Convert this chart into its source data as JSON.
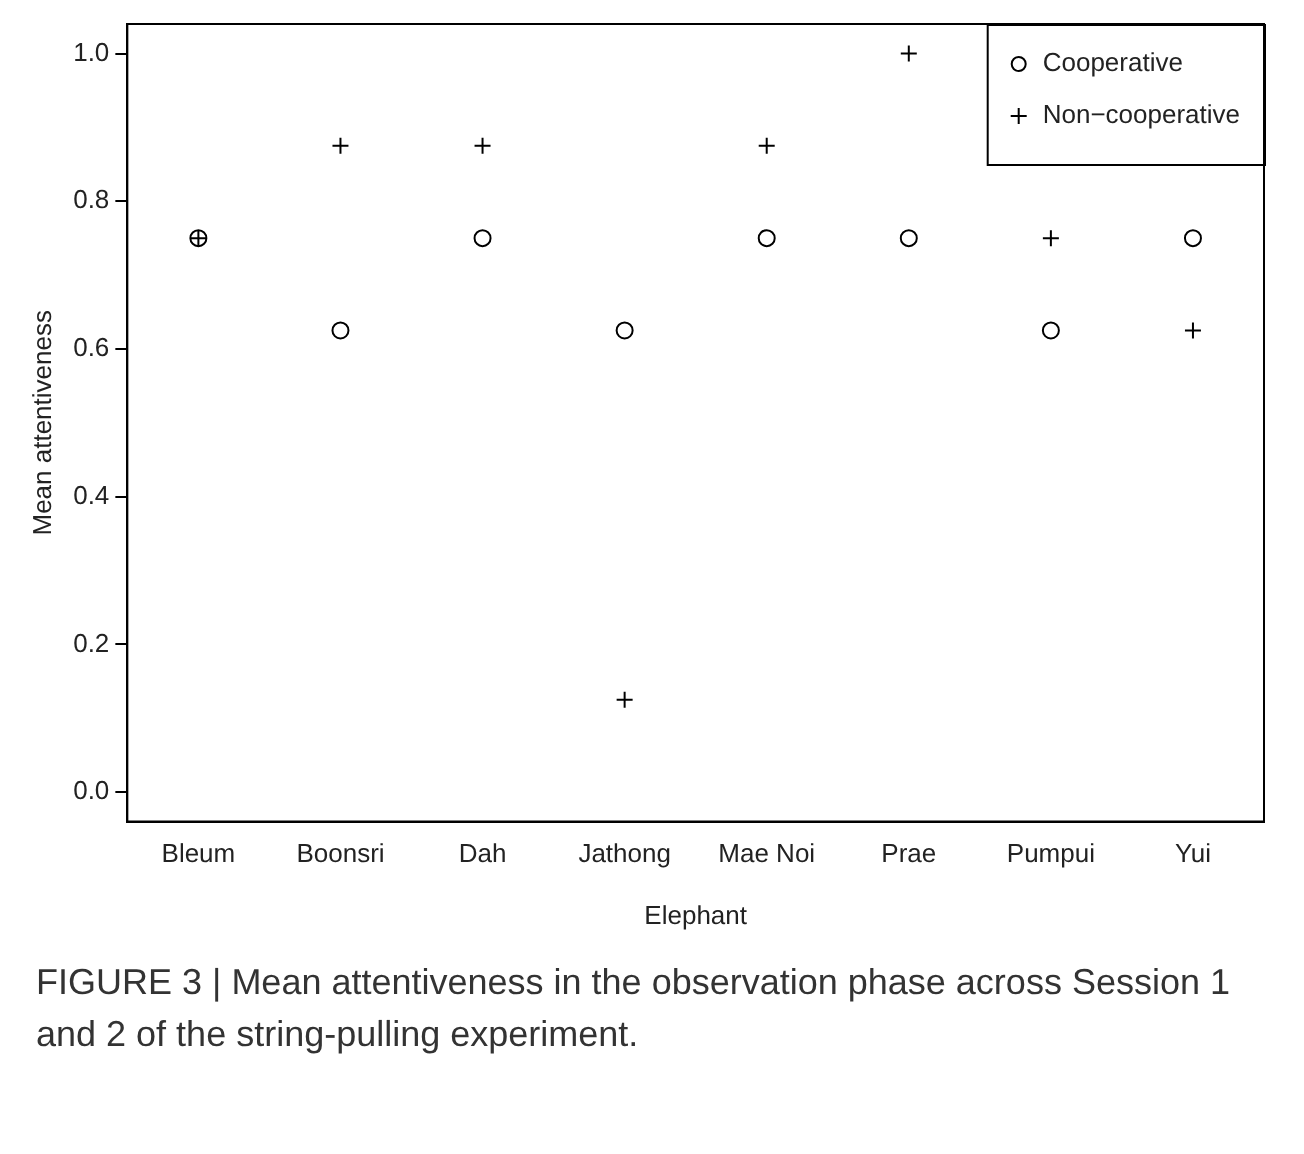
{
  "chart_data": {
    "type": "scatter",
    "xlabel": "Elephant",
    "ylabel": "Mean attentiveness",
    "categories": [
      "Bleum",
      "Boonsri",
      "Dah",
      "Jathong",
      "Mae Noi",
      "Prae",
      "Pumpui",
      "Yui"
    ],
    "series": [
      {
        "name": "Cooperative",
        "color": "#000000",
        "marker": "circle",
        "values": [
          0.75,
          0.625,
          0.75,
          0.625,
          0.75,
          0.75,
          0.625,
          0.75
        ]
      },
      {
        "name": "Non−cooperative",
        "color": "#000000",
        "marker": "cross",
        "values": [
          0.75,
          0.875,
          0.875,
          0.125,
          0.875,
          1.0,
          0.75,
          0.625
        ]
      }
    ],
    "ylim": [
      -0.04,
      1.04
    ],
    "yticks": [
      {
        "value": 0,
        "label": "0.0"
      },
      {
        "value": 0.2,
        "label": "0.2"
      },
      {
        "value": 0.4,
        "label": "0.4"
      },
      {
        "value": 0.6,
        "label": "0.6"
      },
      {
        "value": 0.8,
        "label": "0.8"
      },
      {
        "value": 1,
        "label": "1.0"
      }
    ],
    "grid": false,
    "legend": "top right",
    "annotations": [
      "FIGURE 3 | Mean attentiveness in the observation phase across Session 1 and 2 of the string-pulling experiment."
    ]
  }
}
